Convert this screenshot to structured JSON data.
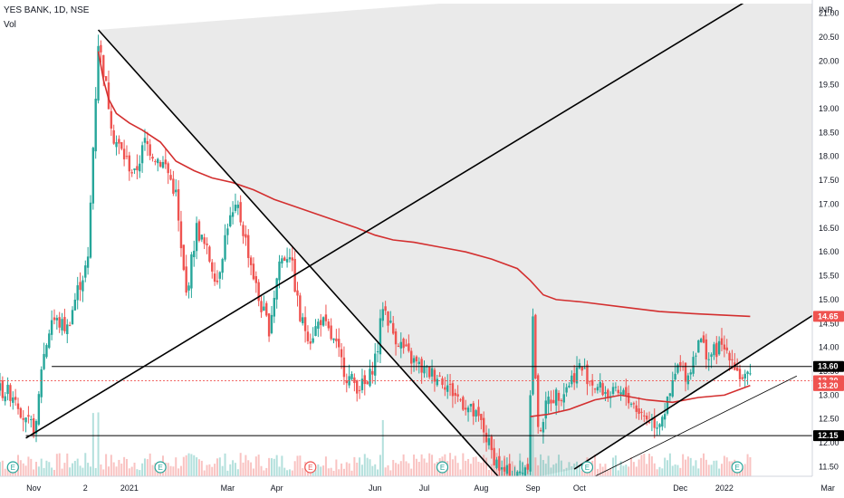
{
  "header": {
    "symbol": "YES BANK, 1D, NSE",
    "indicator": "Vol"
  },
  "currency": "INR",
  "colors": {
    "up": "#26a69a",
    "down": "#ef5350",
    "ma": "#d32f2f",
    "line": "#000000",
    "shade": "#d9d9d9"
  },
  "chart_data": {
    "type": "candlestick",
    "ylim": [
      11.3,
      21.2
    ],
    "xlim": [
      0,
      300
    ],
    "y_ticks": [
      "11.50",
      "12.00",
      "12.50",
      "13.00",
      "13.50",
      "14.00",
      "14.50",
      "15.00",
      "15.50",
      "16.00",
      "16.50",
      "17.00",
      "17.50",
      "18.00",
      "18.50",
      "19.00",
      "19.50",
      "20.00",
      "20.50",
      "21.00"
    ],
    "x_ticks": [
      {
        "label": "Nov",
        "x": 13
      },
      {
        "label": "2",
        "x": 33
      },
      {
        "label": "2021",
        "x": 50
      },
      {
        "label": "Mar",
        "x": 88
      },
      {
        "label": "Apr",
        "x": 107
      },
      {
        "label": "Jun",
        "x": 145
      },
      {
        "label": "Jul",
        "x": 164
      },
      {
        "label": "Aug",
        "x": 186
      },
      {
        "label": "Sep",
        "x": 206
      },
      {
        "label": "Oct",
        "x": 224
      },
      {
        "label": "Dec",
        "x": 263
      },
      {
        "label": "2022",
        "x": 280
      },
      {
        "label": "Mar",
        "x": 320
      }
    ],
    "price_tags": [
      {
        "value": "14.65",
        "y": 14.65,
        "style": "red"
      },
      {
        "value": "13.60",
        "y": 13.6,
        "style": "black"
      },
      {
        "value": "13.30",
        "y": 13.3,
        "style": "red"
      },
      {
        "value": "13.20",
        "y": 13.2,
        "style": "red"
      },
      {
        "value": "12.15",
        "y": 12.15,
        "style": "black"
      }
    ],
    "horizontal_lines": [
      {
        "y": 13.6,
        "x0": 20
      },
      {
        "y": 12.15,
        "x0": 10
      },
      {
        "y": 13.3,
        "x0": 0,
        "dotted": true
      }
    ],
    "trend_lines": [
      {
        "x0": 38,
        "y0": 20.65,
        "x1": 195,
        "y1": 11.15
      },
      {
        "x0": 10,
        "y0": 12.1,
        "x1": 290,
        "y1": 21.3
      },
      {
        "x0": 222,
        "y0": 11.45,
        "x1": 335,
        "y1": 15.4
      },
      {
        "x0": 230,
        "y0": 11.3,
        "x1": 308,
        "y1": 13.4
      }
    ],
    "ma_series": {
      "name": "MA1",
      "points": [
        [
          38,
          20.2
        ],
        [
          40,
          19.6
        ],
        [
          42,
          19.2
        ],
        [
          45,
          18.9
        ],
        [
          50,
          18.7
        ],
        [
          55,
          18.55
        ],
        [
          62,
          18.3
        ],
        [
          68,
          17.9
        ],
        [
          75,
          17.7
        ],
        [
          82,
          17.55
        ],
        [
          90,
          17.45
        ],
        [
          98,
          17.3
        ],
        [
          106,
          17.1
        ],
        [
          114,
          16.95
        ],
        [
          122,
          16.8
        ],
        [
          130,
          16.65
        ],
        [
          138,
          16.5
        ],
        [
          145,
          16.35
        ],
        [
          152,
          16.25
        ],
        [
          160,
          16.2
        ],
        [
          170,
          16.1
        ],
        [
          180,
          16.0
        ],
        [
          190,
          15.85
        ],
        [
          200,
          15.65
        ],
        [
          205,
          15.4
        ],
        [
          210,
          15.1
        ],
        [
          215,
          15.0
        ],
        [
          225,
          14.95
        ],
        [
          240,
          14.85
        ],
        [
          255,
          14.75
        ],
        [
          270,
          14.7
        ],
        [
          290,
          14.65
        ]
      ]
    },
    "ma2_series": {
      "name": "MA2",
      "points": [
        [
          205,
          12.55
        ],
        [
          212,
          12.6
        ],
        [
          220,
          12.7
        ],
        [
          230,
          12.9
        ],
        [
          240,
          13.0
        ],
        [
          250,
          12.9
        ],
        [
          260,
          12.85
        ],
        [
          270,
          12.95
        ],
        [
          280,
          13.0
        ],
        [
          290,
          13.2
        ]
      ]
    },
    "earnings_markers": [
      {
        "x": 5,
        "type": "E"
      },
      {
        "x": 62,
        "type": "E"
      },
      {
        "x": 120,
        "type": "E-red"
      },
      {
        "x": 171,
        "type": "E"
      },
      {
        "x": 227,
        "type": "E"
      },
      {
        "x": 285,
        "type": "E"
      }
    ],
    "volume_ylim": [
      0,
      100
    ]
  }
}
